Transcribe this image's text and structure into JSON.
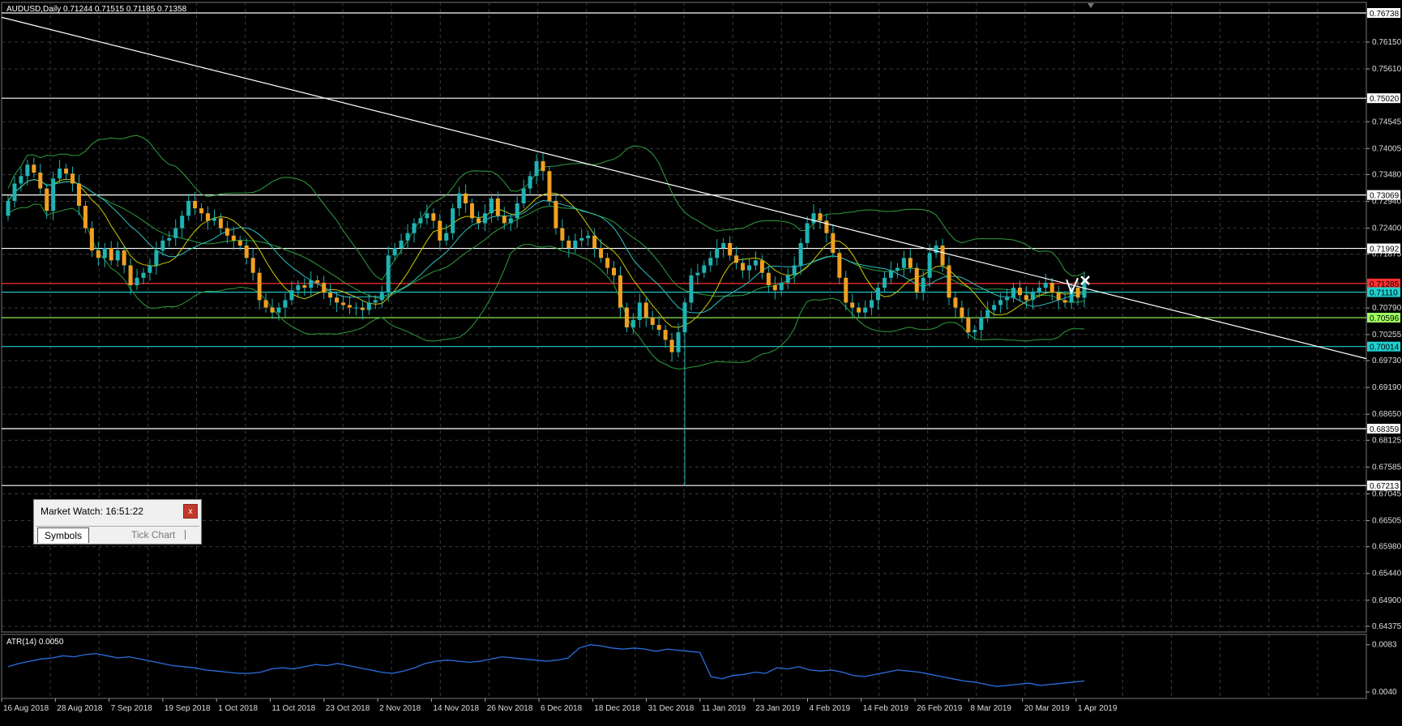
{
  "window": {
    "symbol_header": "AUDUSD,Daily  0.71244 0.71515 0.71185 0.71358",
    "indicator_header": "ATR(14) 0.0050"
  },
  "market_watch": {
    "title": "Market Watch: 16:51:22",
    "close_label": "x",
    "tabs": [
      "Symbols",
      "Tick Chart"
    ]
  },
  "colors": {
    "background": "#000000",
    "grid": "#3a3a3a",
    "bull": "#1fb3b3",
    "bear": "#f0a020",
    "bollinger": "#2e9e3e",
    "ma_fast": "#cccc00",
    "ma_slow": "#2fc0c0",
    "trendline": "#ffffff",
    "atr_line": "#2a6fe0",
    "red_level": "#ff3030",
    "cyan_level": "#1fd0d0",
    "lime_level": "#a0ff60",
    "white_level": "#ffffff"
  },
  "chart_data": [
    {
      "type": "candlestick",
      "ylim": [
        0.6426,
        0.7695
      ],
      "y_ticks": [
        "0.76150",
        "0.75610",
        "0.74545",
        "0.74005",
        "0.73480",
        "0.72940",
        "0.72400",
        "0.71875",
        "0.70790",
        "0.70255",
        "0.69730",
        "0.69190",
        "0.68650",
        "0.68125",
        "0.67585",
        "0.67045",
        "0.66505",
        "0.65980",
        "0.65440",
        "0.64900",
        "0.64375"
      ],
      "x_labels": [
        "16 Aug 2018",
        "28 Aug 2018",
        "7 Sep 2018",
        "19 Sep 2018",
        "1 Oct 2018",
        "11 Oct 2018",
        "23 Oct 2018",
        "2 Nov 2018",
        "14 Nov 2018",
        "26 Nov 2018",
        "6 Dec 2018",
        "18 Dec 2018",
        "31 Dec 2018",
        "11 Jan 2019",
        "23 Jan 2019",
        "4 Feb 2019",
        "14 Feb 2019",
        "26 Feb 2019",
        "8 Mar 2019",
        "20 Mar 2019",
        "1 Apr 2019"
      ],
      "levels": [
        {
          "price": "0.76738",
          "color": "white"
        },
        {
          "price": "0.75020",
          "color": "white"
        },
        {
          "price": "0.73069",
          "color": "white"
        },
        {
          "price": "0.71992",
          "color": "white"
        },
        {
          "price": "0.71285",
          "color": "red"
        },
        {
          "price": "0.71110",
          "color": "cyan"
        },
        {
          "price": "0.70596",
          "color": "lime"
        },
        {
          "price": "0.70014",
          "color": "cyan"
        },
        {
          "price": "0.68359",
          "color": "white"
        },
        {
          "price": "0.67213",
          "color": "white"
        }
      ],
      "trendline": {
        "from": 0.7665,
        "to": 0.6977
      },
      "closes": [
        0.7295,
        0.733,
        0.7345,
        0.7368,
        0.7352,
        0.732,
        0.7275,
        0.734,
        0.736,
        0.735,
        0.733,
        0.7285,
        0.724,
        0.7195,
        0.718,
        0.72,
        0.7175,
        0.7195,
        0.7165,
        0.7125,
        0.714,
        0.715,
        0.7165,
        0.7195,
        0.7215,
        0.722,
        0.724,
        0.7265,
        0.7295,
        0.728,
        0.727,
        0.7255,
        0.726,
        0.724,
        0.7225,
        0.7215,
        0.7205,
        0.718,
        0.715,
        0.7095,
        0.708,
        0.707,
        0.708,
        0.7095,
        0.7115,
        0.7125,
        0.712,
        0.7135,
        0.713,
        0.711,
        0.71,
        0.709,
        0.7085,
        0.708,
        0.708,
        0.7075,
        0.709,
        0.7095,
        0.711,
        0.7185,
        0.72,
        0.7215,
        0.723,
        0.725,
        0.726,
        0.727,
        0.7255,
        0.7215,
        0.723,
        0.728,
        0.731,
        0.729,
        0.726,
        0.725,
        0.727,
        0.73,
        0.7265,
        0.725,
        0.726,
        0.729,
        0.732,
        0.7345,
        0.7375,
        0.7355,
        0.7295,
        0.724,
        0.7215,
        0.72,
        0.7215,
        0.722,
        0.7225,
        0.72,
        0.718,
        0.716,
        0.7145,
        0.708,
        0.704,
        0.7055,
        0.709,
        0.706,
        0.7045,
        0.7035,
        0.7015,
        0.699,
        0.703,
        0.709,
        0.7145,
        0.715,
        0.7165,
        0.718,
        0.72,
        0.721,
        0.7185,
        0.717,
        0.7155,
        0.7165,
        0.7175,
        0.715,
        0.7125,
        0.7115,
        0.713,
        0.7145,
        0.7165,
        0.721,
        0.725,
        0.727,
        0.7255,
        0.723,
        0.719,
        0.714,
        0.709,
        0.708,
        0.707,
        0.708,
        0.7095,
        0.712,
        0.714,
        0.7155,
        0.716,
        0.718,
        0.716,
        0.711,
        0.714,
        0.719,
        0.7205,
        0.7165,
        0.71,
        0.708,
        0.706,
        0.703,
        0.7035,
        0.706,
        0.7075,
        0.7085,
        0.7095,
        0.71,
        0.712,
        0.7105,
        0.7095,
        0.711,
        0.712,
        0.713,
        0.711,
        0.7095,
        0.709,
        0.712,
        0.71,
        0.7135
      ]
    },
    {
      "type": "line",
      "title": "ATR(14) 0.0050",
      "ylim": [
        0.004,
        0.0085
      ],
      "y_ticks": [
        "0.0083",
        "0.0040"
      ],
      "values": [
        0.0063,
        0.0066,
        0.0068,
        0.007,
        0.0071,
        0.0073,
        0.0072,
        0.0074,
        0.0075,
        0.0073,
        0.0071,
        0.0072,
        0.007,
        0.0068,
        0.0066,
        0.0064,
        0.0063,
        0.0062,
        0.006,
        0.0059,
        0.0058,
        0.0057,
        0.0057,
        0.0058,
        0.0061,
        0.0062,
        0.0061,
        0.0063,
        0.0065,
        0.0064,
        0.0066,
        0.0064,
        0.0062,
        0.006,
        0.0058,
        0.0057,
        0.0059,
        0.0062,
        0.0066,
        0.0068,
        0.0069,
        0.0068,
        0.0067,
        0.0068,
        0.007,
        0.0072,
        0.0071,
        0.007,
        0.0069,
        0.0068,
        0.0069,
        0.0071,
        0.008,
        0.0083,
        0.0082,
        0.008,
        0.0079,
        0.008,
        0.0079,
        0.0077,
        0.0079,
        0.0078,
        0.0077,
        0.0076,
        0.0054,
        0.0052,
        0.0055,
        0.0056,
        0.0058,
        0.0057,
        0.0062,
        0.0061,
        0.0063,
        0.006,
        0.0059,
        0.006,
        0.0058,
        0.0055,
        0.0054,
        0.0056,
        0.0058,
        0.006,
        0.0059,
        0.0058,
        0.0056,
        0.0054,
        0.0052,
        0.005,
        0.0049,
        0.0047,
        0.0045,
        0.0046,
        0.0047,
        0.0048,
        0.0046,
        0.0047,
        0.0048,
        0.0049,
        0.005
      ]
    }
  ]
}
